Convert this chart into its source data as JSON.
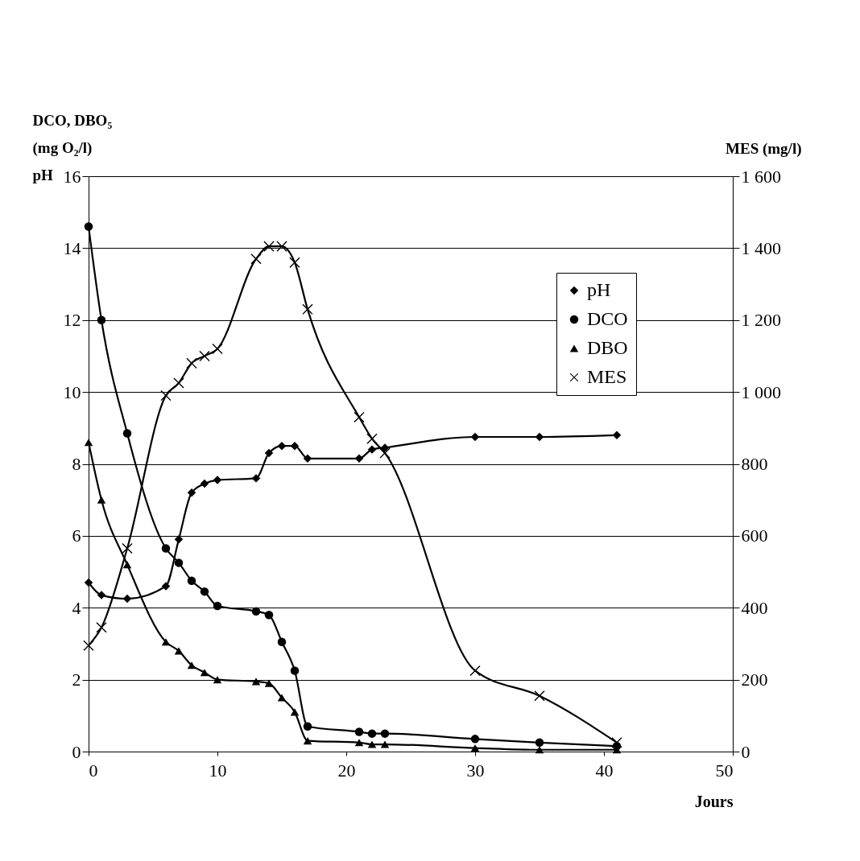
{
  "chart_data": {
    "type": "line",
    "xlabel": "Jours",
    "ylabel": "DCO, DBO₅\n(mg O₂/l)\npH",
    "y2label": "MES (mg/l)",
    "xlim": [
      0,
      50
    ],
    "xticks": [
      0,
      10,
      20,
      30,
      40,
      50
    ],
    "ylim": [
      0,
      16
    ],
    "yticks": [
      0,
      2,
      4,
      6,
      8,
      10,
      12,
      14,
      16
    ],
    "y2lim": [
      0,
      1600
    ],
    "y2ticks": [
      0,
      200,
      400,
      600,
      800,
      {
        "value": 1000,
        "label": "1 000"
      },
      {
        "value": 1200,
        "label": "1 200"
      },
      {
        "value": 1400,
        "label": "1 400"
      },
      {
        "value": 1600,
        "label": "1 600"
      }
    ],
    "grid": "y",
    "legend": "top right",
    "line_style": "solid",
    "series": [
      {
        "name": "pH",
        "color": "#000000",
        "marker": "diamond",
        "x": [
          0,
          1,
          3,
          6,
          7,
          8,
          9,
          10,
          13,
          14,
          15,
          16,
          17,
          21,
          22,
          23,
          30,
          35,
          41
        ],
        "values": [
          4.7,
          4.35,
          4.25,
          4.6,
          5.9,
          7.2,
          7.45,
          7.55,
          7.6,
          8.3,
          8.5,
          8.5,
          8.15,
          8.15,
          8.4,
          8.45,
          8.75,
          8.75,
          8.8
        ]
      },
      {
        "name": "DCO",
        "color": "#000000",
        "marker": "circle",
        "x": [
          0,
          1,
          3,
          6,
          7,
          8,
          9,
          10,
          13,
          14,
          15,
          16,
          17,
          21,
          22,
          23,
          30,
          35,
          41
        ],
        "values": [
          14.6,
          12.0,
          8.85,
          5.65,
          5.25,
          4.75,
          4.45,
          4.05,
          3.9,
          3.8,
          3.05,
          2.25,
          0.7,
          0.55,
          0.5,
          0.5,
          0.35,
          0.25,
          0.15
        ]
      },
      {
        "name": "DBO",
        "color": "#000000",
        "marker": "triangle",
        "x": [
          0,
          1,
          3,
          6,
          7,
          8,
          9,
          10,
          13,
          14,
          15,
          16,
          17,
          21,
          22,
          23,
          30,
          35,
          41
        ],
        "values": [
          8.6,
          7.0,
          5.2,
          3.05,
          2.8,
          2.4,
          2.2,
          2.0,
          1.95,
          1.9,
          1.5,
          1.1,
          0.3,
          0.25,
          0.2,
          0.2,
          0.1,
          0.05,
          0.05
        ]
      },
      {
        "name": "MES",
        "color": "#000000",
        "marker": "cross",
        "axis": "y2",
        "x": [
          0,
          1,
          3,
          6,
          7,
          8,
          9,
          10,
          13,
          14,
          15,
          16,
          17,
          21,
          22,
          23,
          30,
          35,
          41
        ],
        "values": [
          295,
          345,
          565,
          990,
          1025,
          1080,
          1100,
          1120,
          1370,
          1405,
          1405,
          1360,
          1230,
          930,
          870,
          830,
          225,
          155,
          25
        ]
      }
    ]
  }
}
